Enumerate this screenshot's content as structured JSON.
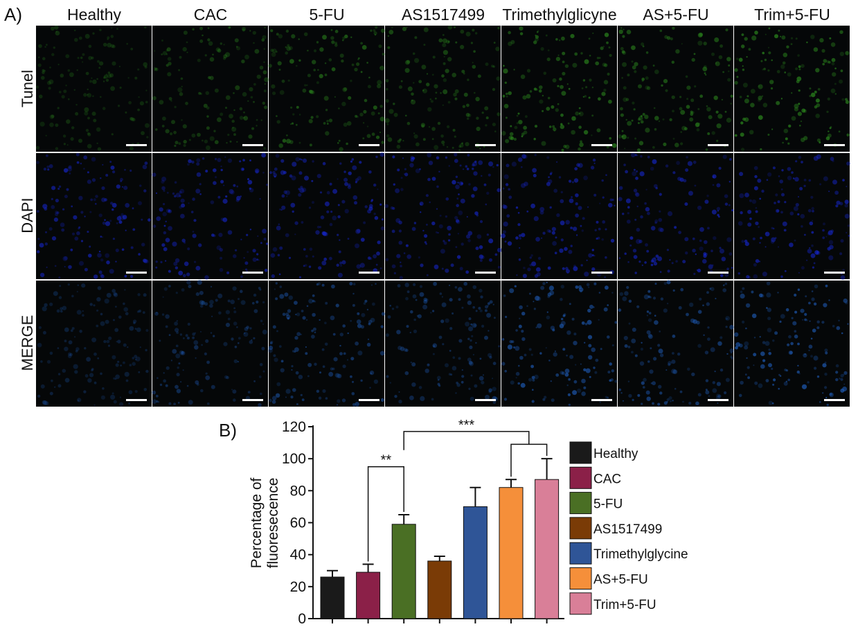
{
  "panel_a": {
    "label": "A)",
    "columns": [
      "Healthy",
      "CAC",
      "5-FU",
      "AS1517499",
      "Trimethylglicyne",
      "AS+5-FU",
      "Trim+5-FU"
    ],
    "rows": [
      "Tunel",
      "DAPI",
      "MERGE"
    ],
    "row_colors": {
      "Tunel": "#2c8a1e",
      "DAPI": "#1626c8",
      "MERGE": "#1e5ab4"
    },
    "column_intensity": [
      0.15,
      0.35,
      0.6,
      0.45,
      0.8,
      0.65,
      0.85
    ]
  },
  "panel_b": {
    "label": "B)"
  },
  "chart_data": {
    "type": "bar",
    "categories": [
      "Healthy",
      "CAC",
      "5-FU",
      "AS1517499",
      "Trimethylglycine",
      "AS+5-FU",
      "Trim+5-FU"
    ],
    "values": [
      26,
      29,
      59,
      36,
      70,
      82,
      87
    ],
    "errors": [
      4,
      5,
      6,
      3,
      12,
      5,
      13
    ],
    "colors": [
      "#1a1a1a",
      "#8b2048",
      "#4a6f24",
      "#7a3b06",
      "#2f5597",
      "#f58f3a",
      "#d97f98"
    ],
    "ylabel": "Percentage of fluoresecence",
    "ylim": [
      0,
      120
    ],
    "yticks": [
      0,
      20,
      40,
      60,
      80,
      100,
      120
    ],
    "legend_position": "right",
    "significance": [
      {
        "label": "**",
        "from": "CAC",
        "to": "5-FU"
      },
      {
        "label": "***",
        "from": "5-FU",
        "to": "AS+5-FU / Trim+5-FU"
      }
    ]
  }
}
